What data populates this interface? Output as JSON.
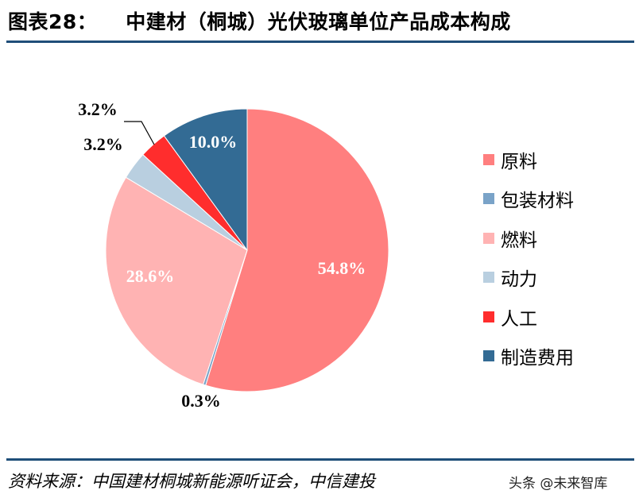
{
  "header": {
    "figure_label": "图表28：",
    "title": "中建材（桐城）光伏玻璃单位产品成本构成"
  },
  "footer": {
    "source": "资料来源：中国建材桐城新能源听证会，中信建投",
    "watermark": "头条 @未来智库"
  },
  "chart_data": {
    "type": "pie",
    "title": "中建材（桐城）光伏玻璃单位产品成本构成",
    "legend_position": "right",
    "slices": [
      {
        "name": "原料",
        "value": 54.8,
        "label": "54.8%",
        "color": "#ff7f7f",
        "label_color": "#ffffff"
      },
      {
        "name": "包装材料",
        "value": 0.3,
        "label": "0.3%",
        "color": "#7aa3c8",
        "label_color": "#000000"
      },
      {
        "name": "燃料",
        "value": 28.6,
        "label": "28.6%",
        "color": "#ffb3b3",
        "label_color": "#ffffff"
      },
      {
        "name": "动力",
        "value": 3.2,
        "label": "3.2%",
        "color": "#b9cfe0",
        "label_color": "#000000"
      },
      {
        "name": "人工",
        "value": 3.2,
        "label": "3.2%",
        "color": "#ff2d2d",
        "label_color": "#000000"
      },
      {
        "name": "制造费用",
        "value": 10.0,
        "label": "10.0%",
        "color": "#336b94",
        "label_color": "#ffffff"
      }
    ]
  }
}
